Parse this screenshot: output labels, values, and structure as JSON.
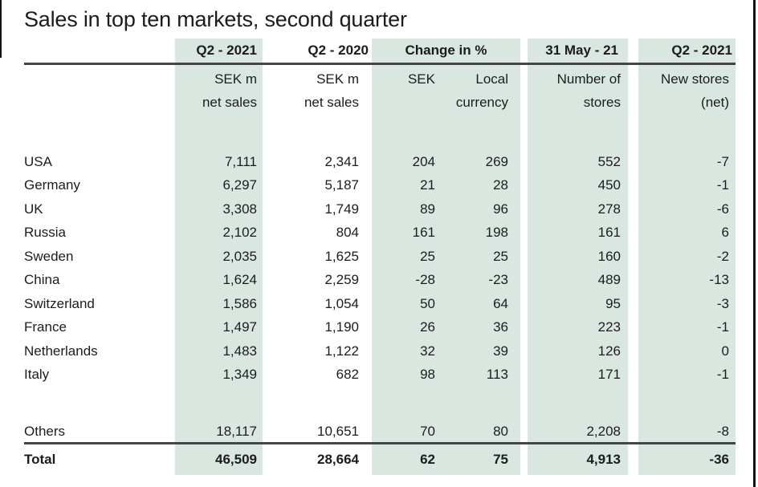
{
  "title": "Sales in top ten markets, second quarter",
  "colors": {
    "column_band": "#d9e7e0",
    "rule": "#454545",
    "text": "#1c1c1c",
    "page_edge": "#111111"
  },
  "table": {
    "headers": {
      "q2_2021": "Q2 - 2021",
      "q2_2020": "Q2 - 2020",
      "change_pct": "Change in %",
      "date_31_may": "31 May - 21",
      "q2_2021_stores": "Q2 - 2021"
    },
    "subheaders": {
      "q2_2021": [
        "SEK m",
        "net sales"
      ],
      "q2_2020": [
        "SEK m",
        "net sales"
      ],
      "change_sek": [
        "SEK"
      ],
      "change_local": [
        "Local",
        "currency"
      ],
      "stores": [
        "Number of",
        "stores"
      ],
      "new_stores": [
        "New stores",
        "(net)"
      ]
    },
    "rows": [
      {
        "market": "USA",
        "q2_2021": "7,111",
        "q2_2020": "2,341",
        "change_sek": "204",
        "change_local": "269",
        "stores": "552",
        "new_stores": "-7"
      },
      {
        "market": "Germany",
        "q2_2021": "6,297",
        "q2_2020": "5,187",
        "change_sek": "21",
        "change_local": "28",
        "stores": "450",
        "new_stores": "-1"
      },
      {
        "market": "UK",
        "q2_2021": "3,308",
        "q2_2020": "1,749",
        "change_sek": "89",
        "change_local": "96",
        "stores": "278",
        "new_stores": "-6"
      },
      {
        "market": "Russia",
        "q2_2021": "2,102",
        "q2_2020": "804",
        "change_sek": "161",
        "change_local": "198",
        "stores": "161",
        "new_stores": "6"
      },
      {
        "market": "Sweden",
        "q2_2021": "2,035",
        "q2_2020": "1,625",
        "change_sek": "25",
        "change_local": "25",
        "stores": "160",
        "new_stores": "-2"
      },
      {
        "market": "China",
        "q2_2021": "1,624",
        "q2_2020": "2,259",
        "change_sek": "-28",
        "change_local": "-23",
        "stores": "489",
        "new_stores": "-13"
      },
      {
        "market": "Switzerland",
        "q2_2021": "1,586",
        "q2_2020": "1,054",
        "change_sek": "50",
        "change_local": "64",
        "stores": "95",
        "new_stores": "-3"
      },
      {
        "market": "France",
        "q2_2021": "1,497",
        "q2_2020": "1,190",
        "change_sek": "26",
        "change_local": "36",
        "stores": "223",
        "new_stores": "-1"
      },
      {
        "market": "Netherlands",
        "q2_2021": "1,483",
        "q2_2020": "1,122",
        "change_sek": "32",
        "change_local": "39",
        "stores": "126",
        "new_stores": "0"
      },
      {
        "market": "Italy",
        "q2_2021": "1,349",
        "q2_2020": "682",
        "change_sek": "98",
        "change_local": "113",
        "stores": "171",
        "new_stores": "-1"
      }
    ],
    "others": {
      "market": "Others",
      "q2_2021": "18,117",
      "q2_2020": "10,651",
      "change_sek": "70",
      "change_local": "80",
      "stores": "2,208",
      "new_stores": "-8"
    },
    "total": {
      "market": "Total",
      "q2_2021": "46,509",
      "q2_2020": "28,664",
      "change_sek": "62",
      "change_local": "75",
      "stores": "4,913",
      "new_stores": "-36"
    }
  }
}
